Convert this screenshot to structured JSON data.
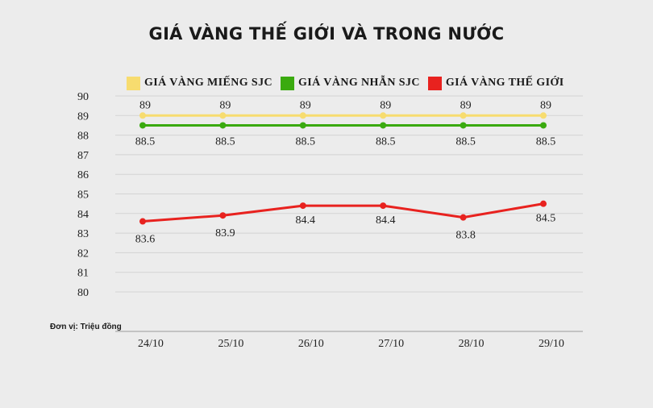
{
  "chart_data": {
    "type": "line",
    "title": "GIÁ VÀNG THẾ GIỚI VÀ TRONG NƯỚC",
    "unit_note": "Đơn vị: Triệu đồng",
    "categories": [
      "24/10",
      "25/10",
      "26/10",
      "27/10",
      "28/10",
      "29/10"
    ],
    "ylim": [
      80,
      90
    ],
    "yticks": [
      90,
      89,
      88,
      87,
      86,
      85,
      84,
      83,
      82,
      81,
      80
    ],
    "grid": true,
    "legend_position": "top",
    "series": [
      {
        "name": "GIÁ VÀNG MIẾNG SJC",
        "color": "#f7dc6f",
        "values": [
          89,
          89,
          89,
          89,
          89,
          89
        ],
        "labels": [
          "89",
          "89",
          "89",
          "89",
          "89",
          "89"
        ]
      },
      {
        "name": "GIÁ VÀNG NHẪN SJC",
        "color": "#3aaa0f",
        "values": [
          88.5,
          88.5,
          88.5,
          88.5,
          88.5,
          88.5
        ],
        "labels": [
          "88.5",
          "88.5",
          "88.5",
          "88.5",
          "88.5",
          "88.5"
        ]
      },
      {
        "name": "GIÁ VÀNG THẾ GIỚI",
        "color": "#e8221f",
        "values": [
          83.6,
          83.9,
          84.4,
          84.4,
          83.8,
          84.5
        ],
        "labels": [
          "83.6",
          "83.9",
          "84.4",
          "84.4",
          "83.8",
          "84.5"
        ]
      }
    ]
  }
}
